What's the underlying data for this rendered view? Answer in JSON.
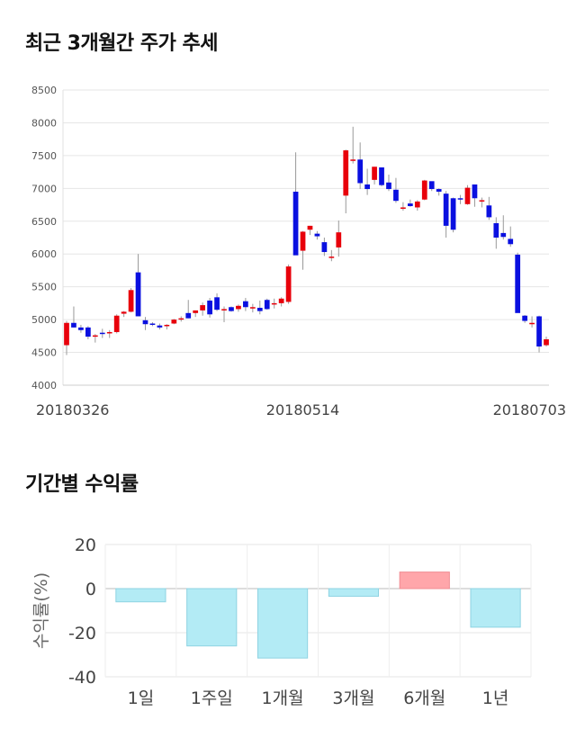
{
  "titles": {
    "price_trend": "최근 3개월간 주가 추세",
    "period_returns": "기간별 수익률"
  },
  "colors": {
    "up": "#e8000b",
    "down": "#0a10e0",
    "positive_bar": "#ffa6aa",
    "negative_bar": "#b3ebf5",
    "grid": "#e6e6e6"
  },
  "chart_data": [
    {
      "type": "candlestick",
      "title": "최근 3개월간 주가 추세",
      "ylim": [
        4000,
        8500
      ],
      "yticks": [
        "8500",
        "8000",
        "7500",
        "7000",
        "6500",
        "6000",
        "5500",
        "5000",
        "4500",
        "4000"
      ],
      "xticks": [
        {
          "label": "20180326",
          "index": 0
        },
        {
          "label": "20180514",
          "index": 33
        },
        {
          "label": "20180703",
          "index": 67
        }
      ],
      "ohlc": [
        [
          4610,
          4980,
          4460,
          4950
        ],
        [
          4950,
          5200,
          4880,
          4880
        ],
        [
          4880,
          4920,
          4800,
          4840
        ],
        [
          4880,
          4900,
          4700,
          4740
        ],
        [
          4740,
          4780,
          4650,
          4760
        ],
        [
          4800,
          4860,
          4720,
          4780
        ],
        [
          4790,
          4840,
          4720,
          4810
        ],
        [
          4810,
          5080,
          4790,
          5060
        ],
        [
          5090,
          5130,
          5040,
          5120
        ],
        [
          5120,
          5480,
          5110,
          5450
        ],
        [
          5720,
          6000,
          5060,
          5050
        ],
        [
          4990,
          5040,
          4840,
          4930
        ],
        [
          4940,
          4960,
          4900,
          4920
        ],
        [
          4910,
          4940,
          4850,
          4880
        ],
        [
          4900,
          4930,
          4850,
          4920
        ],
        [
          4940,
          5010,
          4930,
          5000
        ],
        [
          5010,
          5050,
          4970,
          5020
        ],
        [
          5100,
          5300,
          5020,
          5020
        ],
        [
          5100,
          5140,
          5040,
          5140
        ],
        [
          5140,
          5260,
          5060,
          5220
        ],
        [
          5290,
          5330,
          5030,
          5080
        ],
        [
          5340,
          5400,
          5130,
          5150
        ],
        [
          5140,
          5200,
          4960,
          5160
        ],
        [
          5190,
          5200,
          5120,
          5130
        ],
        [
          5160,
          5230,
          5120,
          5210
        ],
        [
          5280,
          5330,
          5130,
          5190
        ],
        [
          5190,
          5240,
          5110,
          5190
        ],
        [
          5180,
          5290,
          5080,
          5130
        ],
        [
          5300,
          5320,
          5150,
          5160
        ],
        [
          5250,
          5320,
          5170,
          5250
        ],
        [
          5250,
          5340,
          5200,
          5320
        ],
        [
          5270,
          5840,
          5240,
          5810
        ],
        [
          6950,
          7550,
          5990,
          5980
        ],
        [
          6050,
          6350,
          5760,
          6340
        ],
        [
          6370,
          6430,
          6290,
          6430
        ],
        [
          6310,
          6350,
          6220,
          6270
        ],
        [
          6180,
          6250,
          5970,
          6030
        ],
        [
          5950,
          6060,
          5890,
          5960
        ],
        [
          6100,
          6510,
          5960,
          6330
        ],
        [
          6890,
          7590,
          6620,
          7580
        ],
        [
          7420,
          7940,
          7380,
          7440
        ],
        [
          7440,
          7700,
          6990,
          7080
        ],
        [
          7060,
          7300,
          6900,
          6990
        ],
        [
          7130,
          7330,
          7060,
          7330
        ],
        [
          7320,
          7310,
          7030,
          7050
        ],
        [
          7090,
          7210,
          6960,
          6990
        ],
        [
          6980,
          7160,
          6780,
          6810
        ],
        [
          6710,
          6790,
          6660,
          6710
        ],
        [
          6770,
          6830,
          6720,
          6730
        ],
        [
          6710,
          6820,
          6660,
          6800
        ],
        [
          6830,
          7130,
          6820,
          7120
        ],
        [
          7110,
          7100,
          6960,
          6990
        ],
        [
          6990,
          7000,
          6890,
          6950
        ],
        [
          6920,
          6960,
          6250,
          6430
        ],
        [
          6850,
          6860,
          6330,
          6370
        ],
        [
          6850,
          6900,
          6760,
          6840
        ],
        [
          6760,
          7050,
          6750,
          7010
        ],
        [
          7060,
          7060,
          6720,
          6850
        ],
        [
          6820,
          6860,
          6710,
          6820
        ],
        [
          6740,
          6870,
          6520,
          6560
        ],
        [
          6470,
          6560,
          6080,
          6250
        ],
        [
          6320,
          6590,
          6220,
          6260
        ],
        [
          6230,
          6420,
          6110,
          6150
        ],
        [
          5990,
          6020,
          5120,
          5100
        ],
        [
          5060,
          5070,
          4950,
          4980
        ],
        [
          4930,
          5050,
          4880,
          4950
        ],
        [
          5050,
          5060,
          4500,
          4590
        ],
        [
          4610,
          4740,
          4590,
          4700
        ]
      ]
    },
    {
      "type": "bar",
      "title": "기간별 수익률",
      "ylabel": "수익률(%)",
      "ylim": [
        -40,
        20
      ],
      "yticks": [
        "20",
        "0",
        "-20",
        "-40"
      ],
      "categories": [
        "1일",
        "1주일",
        "1개월",
        "3개월",
        "6개월",
        "1년"
      ],
      "values": [
        -6,
        -26,
        -31.5,
        -3.5,
        7.5,
        -17.5
      ]
    }
  ]
}
